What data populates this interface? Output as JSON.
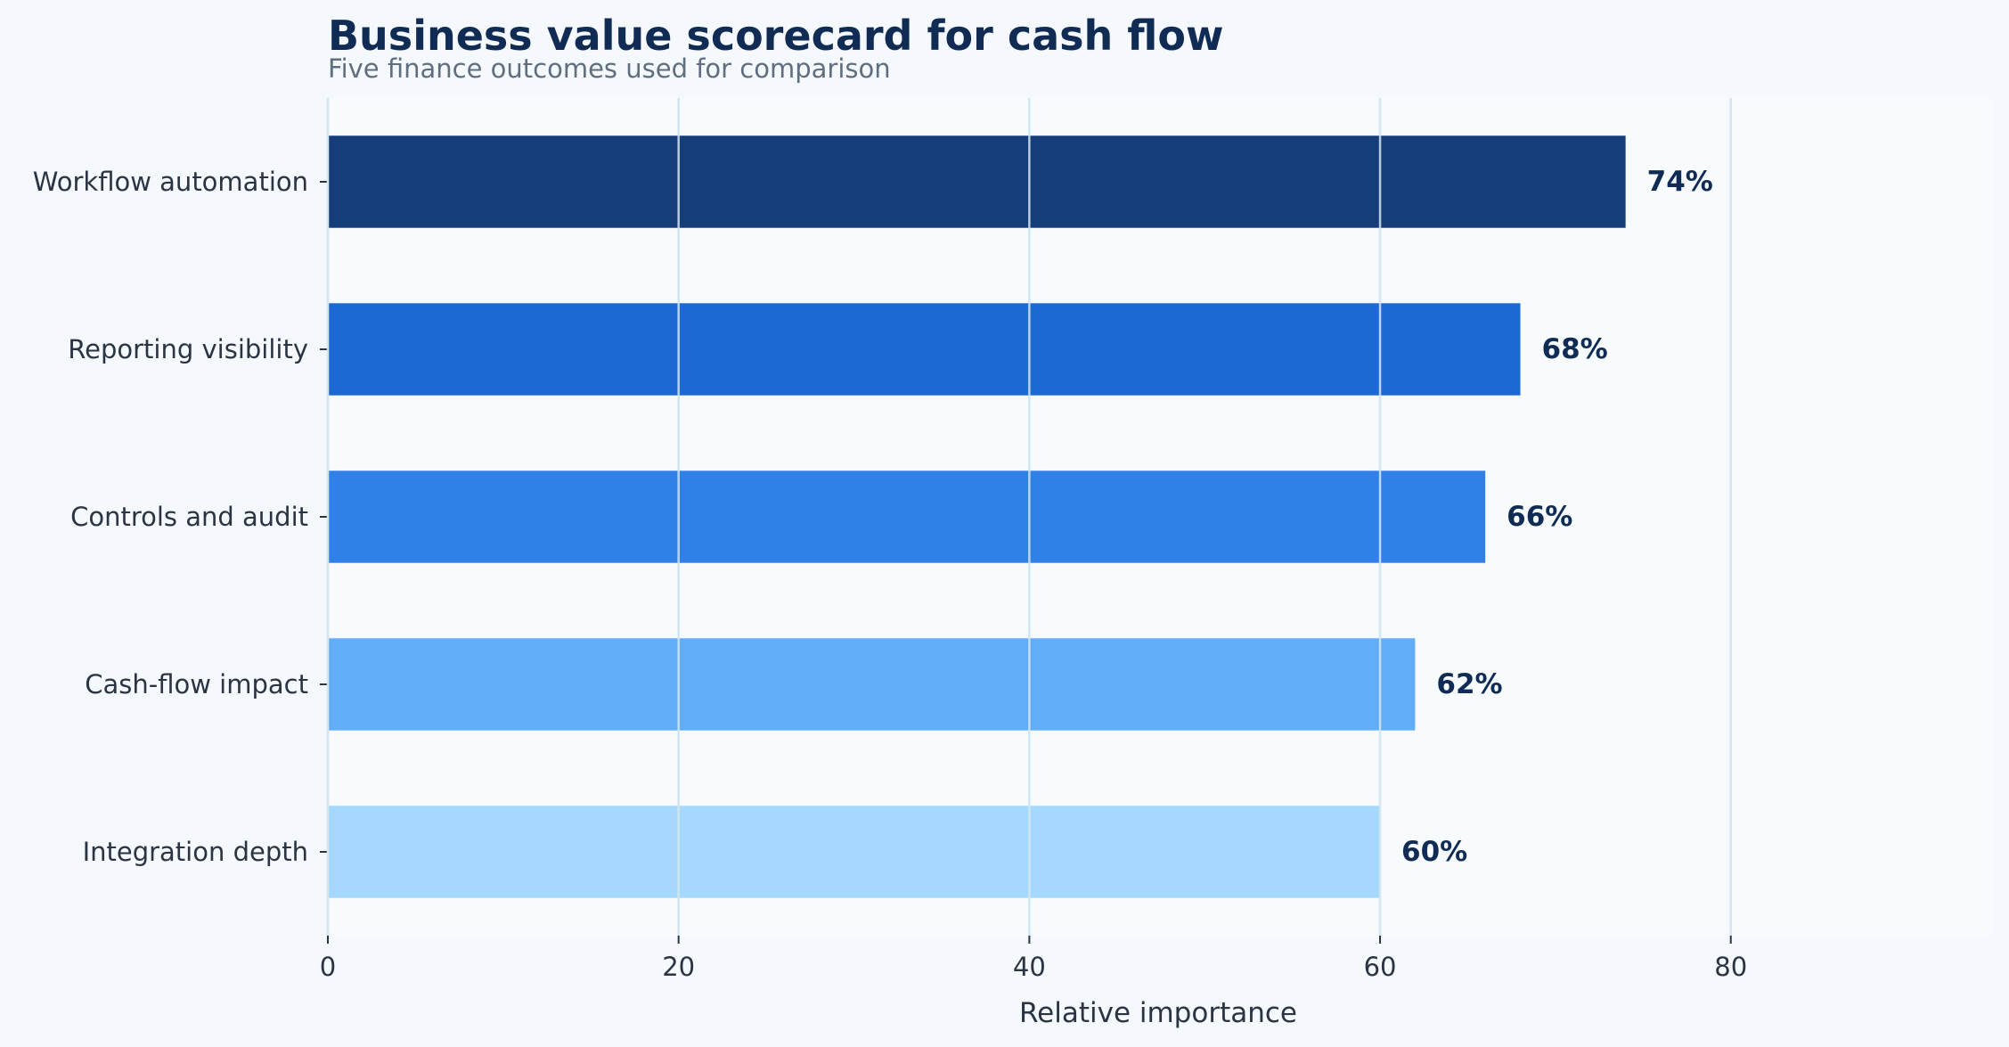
{
  "colors": {
    "background": "#f5f9fd",
    "plot_background": "#f7fbfe",
    "gridline": "#d3e6ee",
    "title": "#102c54",
    "subtitle": "#5f6f80",
    "text": "#2a3442"
  },
  "chart_data": {
    "type": "bar",
    "orientation": "horizontal",
    "title": "Business value scorecard for cash flow",
    "subtitle": "Five finance outcomes used for comparison",
    "xlabel": "Relative importance",
    "ylabel": "",
    "xlim": [
      0,
      95
    ],
    "xticks": [
      0,
      20,
      40,
      60,
      80
    ],
    "grid": true,
    "legend": "none",
    "categories": [
      "Workflow automation",
      "Reporting visibility",
      "Controls and audit",
      "Cash-flow impact",
      "Integration depth"
    ],
    "values": [
      74,
      68,
      66,
      62,
      60
    ],
    "value_labels": [
      "74%",
      "68%",
      "66%",
      "62%",
      "60%"
    ],
    "bar_colors": [
      "#143d7a",
      "#1c69d3",
      "#2f80e7",
      "#62adf7",
      "#a6d8fd"
    ]
  }
}
